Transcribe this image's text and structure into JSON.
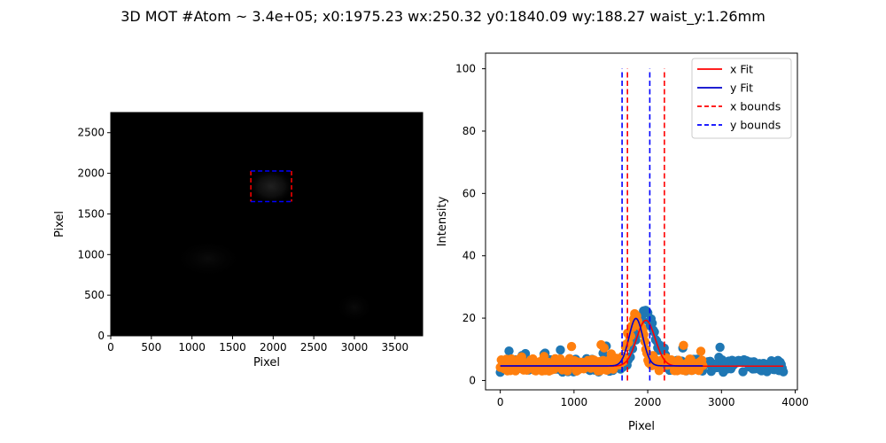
{
  "title": "3D MOT #Atom ~ 3.4e+05; x0:1975.23 wx:250.32 y0:1840.09 wy:188.27 waist_y:1.26mm",
  "chart_data": [
    {
      "type": "heatmap",
      "xlabel": "Pixel",
      "ylabel": "Pixel",
      "xlim": [
        0,
        3840
      ],
      "ylim": [
        0,
        2748
      ],
      "xticks": [
        0,
        500,
        1000,
        1500,
        2000,
        2500,
        3000,
        3500
      ],
      "yticks": [
        0,
        500,
        1000,
        1500,
        2000,
        2500
      ],
      "colormap": "gray",
      "background_color": "#000000",
      "peak": {
        "x": 1975.23,
        "y": 1840.09
      },
      "x_bounds": [
        1725,
        2226
      ],
      "y_bounds": [
        1652,
        2028
      ],
      "x_bounds_color": "#ff0000",
      "y_bounds_color": "#0000ff"
    },
    {
      "type": "scatter",
      "xlabel": "Pixel",
      "ylabel": "Intensity",
      "xlim": [
        -200,
        4030
      ],
      "ylim": [
        -3,
        105
      ],
      "xticks": [
        0,
        1000,
        2000,
        3000,
        4000
      ],
      "yticks": [
        0,
        20,
        40,
        60,
        80,
        100
      ],
      "grid": false,
      "legend_position": "top-right",
      "series": [
        {
          "kind": "scatter",
          "color": "#1f77b4",
          "x_range": [
            0,
            3840
          ],
          "baseline": 4.6,
          "amplitude": 16,
          "center": 1975,
          "sigma": 125,
          "noise": 2.2,
          "count": 260
        },
        {
          "kind": "scatter",
          "color": "#ff7f0e",
          "x_range": [
            0,
            2748
          ],
          "baseline": 4.8,
          "amplitude": 15,
          "center": 1840,
          "sigma": 94,
          "noise": 2.0,
          "count": 200
        },
        {
          "name": "x Fit",
          "kind": "line",
          "color": "#ff0000",
          "x_range": [
            0,
            3840
          ],
          "baseline": 4.6,
          "amplitude": 14.7,
          "center": 1975.23,
          "sigma": 125.16
        },
        {
          "name": "y Fit",
          "kind": "line",
          "color": "#0000cc",
          "x_range": [
            0,
            2748
          ],
          "baseline": 4.7,
          "amplitude": 15.2,
          "center": 1840.09,
          "sigma": 94.14
        },
        {
          "name": "x bounds",
          "kind": "vline",
          "color": "#ff0000",
          "x": [
            1725,
            2226
          ],
          "y": [
            0,
            100
          ]
        },
        {
          "name": "y bounds",
          "kind": "vline",
          "color": "#0000ff",
          "x": [
            1652,
            2028
          ],
          "y": [
            0,
            100
          ]
        }
      ]
    }
  ]
}
